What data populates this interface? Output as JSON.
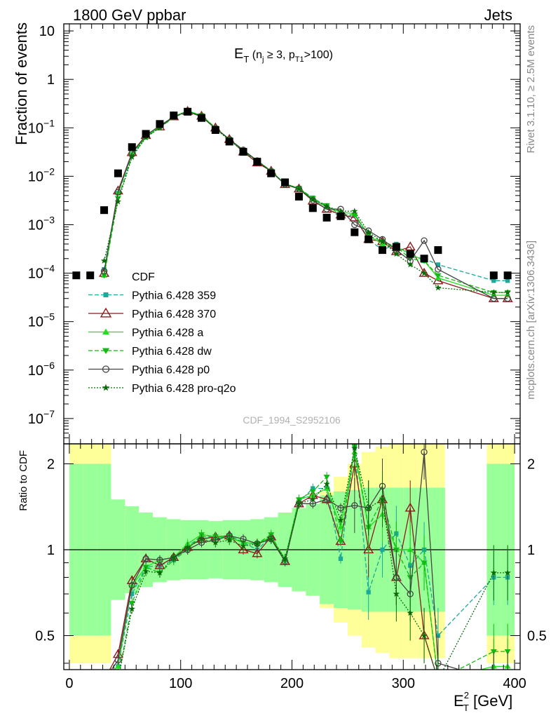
{
  "header": {
    "left": "1800 GeV ppbar",
    "right": "Jets"
  },
  "plot_title": {
    "main": "E",
    "sub": "T",
    "paren_open": " (n",
    "n_sub": "j",
    "middle": " ≥ 3, p",
    "p_sub": "T1",
    "paren_close": ">100)"
  },
  "analysis_id": "CDF_1994_S2952106",
  "side_labels": {
    "rivet": "Rivet 3.1.10, ≥ 2.5M events",
    "mcplots": "mcplots.cern.ch [arXiv:1306.3436]"
  },
  "ylabel_main": "Fraction of events",
  "ylabel_ratio": "Ratio to CDF",
  "xlabel": {
    "main": "E",
    "sup": "2",
    "sub": "T",
    "unit": " [GeV]"
  },
  "main_yticks": [
    {
      "value": 1e-07,
      "base": "10",
      "exp": "−7"
    },
    {
      "value": 1e-06,
      "base": "10",
      "exp": "−6"
    },
    {
      "value": 1e-05,
      "base": "10",
      "exp": "−5"
    },
    {
      "value": 0.0001,
      "base": "10",
      "exp": "−4"
    },
    {
      "value": 0.001,
      "base": "10",
      "exp": "−3"
    },
    {
      "value": 0.01,
      "base": "10",
      "exp": "−2"
    },
    {
      "value": 0.1,
      "base": "10",
      "exp": "−1"
    },
    {
      "value": 1,
      "base": "1",
      "exp": ""
    },
    {
      "value": 10,
      "base": "10",
      "exp": ""
    }
  ],
  "ratio_yticks": [
    {
      "value": 0.5,
      "label": "0.5"
    },
    {
      "value": 1,
      "label": "1"
    },
    {
      "value": 2,
      "label": "2"
    }
  ],
  "xticks": [
    {
      "value": 0,
      "label": "0"
    },
    {
      "value": 100,
      "label": "100"
    },
    {
      "value": 200,
      "label": "200"
    },
    {
      "value": 300,
      "label": "300"
    },
    {
      "value": 400,
      "label": "400"
    }
  ],
  "chart_data": {
    "type": "line",
    "xlim": [
      -5,
      405
    ],
    "main_ylim": [
      3e-08,
      14
    ],
    "main_yscale": "log",
    "ratio_ylim": [
      0.38,
      2.35
    ],
    "ratio_yscale": "log",
    "legend_position": "lower-left",
    "data": {
      "name": "CDF",
      "color": "#000000",
      "x": [
        6.25,
        18.75,
        31.25,
        43.75,
        56.25,
        68.75,
        81.25,
        93.75,
        106.25,
        118.75,
        131.25,
        143.75,
        156.25,
        168.75,
        181.25,
        193.75,
        206.25,
        218.75,
        231.25,
        243.75,
        256.25,
        268.75,
        281.25,
        293.75,
        306.25,
        318.75,
        331.25,
        381.25,
        393.75
      ],
      "y": [
        9e-05,
        9e-05,
        0.002,
        0.0115,
        0.04,
        0.075,
        0.12,
        0.18,
        0.215,
        0.16,
        0.09,
        0.052,
        0.032,
        0.02,
        0.0115,
        0.0075,
        0.0038,
        0.0022,
        0.0014,
        0.0015,
        0.0007,
        0.0005,
        0.0003,
        0.00035,
        0.00025,
        0.0002,
        0.0003,
        9e-05,
        9e-05
      ],
      "band_inner": [
        2.0,
        2.0,
        2.0,
        1.5,
        1.42,
        1.35,
        1.3,
        1.28,
        1.27,
        1.27,
        1.26,
        1.27,
        1.27,
        1.28,
        1.3,
        1.35,
        1.4,
        1.45,
        1.55,
        1.6,
        1.62,
        1.65,
        1.65,
        1.65,
        1.65,
        1.65,
        1.65,
        2.0,
        2.0
      ],
      "band_outer": [
        2.5,
        2.5,
        2.5,
        1.45,
        1.35,
        1.28,
        1.25,
        1.22,
        1.21,
        1.21,
        1.2,
        1.2,
        1.21,
        1.22,
        1.25,
        1.3,
        1.38,
        1.45,
        1.6,
        1.8,
        2.0,
        2.2,
        2.3,
        2.4,
        2.4,
        2.4,
        2.4,
        2.5,
        2.5
      ]
    },
    "series": [
      {
        "name": "Pythia 6.428 359",
        "color": "#1aa99a",
        "style": "dashed",
        "marker": "square",
        "x": [
          31.25,
          43.75,
          56.25,
          68.75,
          81.25,
          93.75,
          106.25,
          118.75,
          131.25,
          143.75,
          156.25,
          168.75,
          181.25,
          193.75,
          206.25,
          218.75,
          231.25,
          243.75,
          256.25,
          268.75,
          281.25,
          293.75,
          306.25,
          318.75,
          331.25,
          381.25,
          393.75
        ],
        "y": [
          0.00012,
          0.0045,
          0.028,
          0.065,
          0.105,
          0.165,
          0.222,
          0.178,
          0.1,
          0.058,
          0.034,
          0.02,
          0.0128,
          0.0069,
          0.0056,
          0.0036,
          0.0023,
          0.0014,
          0.0016,
          0.0005,
          0.0003,
          0.0004,
          0.00022,
          0.0002,
          0.00015,
          7e-05,
          7e-05
        ],
        "ratio": [
          0.06,
          0.39,
          0.7,
          0.87,
          0.88,
          0.92,
          1.03,
          1.11,
          1.11,
          1.12,
          1.06,
          1.0,
          1.11,
          0.92,
          1.47,
          1.64,
          1.64,
          0.93,
          2.29,
          0.71,
          1.0,
          1.14,
          0.88,
          1.0,
          0.5,
          0.8,
          0.8
        ]
      },
      {
        "name": "Pythia 6.428 370",
        "color": "#8b1a1a",
        "style": "solid",
        "marker": "triangle-open",
        "x": [
          31.25,
          43.75,
          56.25,
          68.75,
          81.25,
          93.75,
          106.25,
          118.75,
          131.25,
          143.75,
          156.25,
          168.75,
          181.25,
          193.75,
          206.25,
          218.75,
          231.25,
          243.75,
          256.25,
          268.75,
          281.25,
          293.75,
          306.25,
          318.75,
          331.25,
          381.25,
          393.75
        ],
        "y": [
          0.0001,
          0.005,
          0.031,
          0.07,
          0.105,
          0.17,
          0.22,
          0.175,
          0.1,
          0.058,
          0.032,
          0.019,
          0.0128,
          0.0068,
          0.0055,
          0.0031,
          0.0021,
          0.0016,
          0.0014,
          0.0005,
          0.00045,
          0.00028,
          0.00035,
          0.0001,
          7e-05,
          3e-05,
          3e-05
        ],
        "ratio": [
          0.05,
          0.43,
          0.78,
          0.93,
          0.88,
          0.94,
          1.02,
          1.09,
          1.11,
          1.12,
          1.0,
          0.97,
          1.11,
          0.91,
          1.45,
          1.55,
          1.5,
          1.07,
          2.0,
          1.0,
          1.5,
          0.8,
          1.4,
          0.5,
          0.23,
          0.33,
          0.33
        ]
      },
      {
        "name": "Pythia 6.428 a",
        "color": "#22dd22",
        "style": "solid",
        "marker": "triangle-filled",
        "x": [
          31.25,
          43.75,
          56.25,
          68.75,
          81.25,
          93.75,
          106.25,
          118.75,
          131.25,
          143.75,
          156.25,
          168.75,
          181.25,
          193.75,
          206.25,
          218.75,
          231.25,
          243.75,
          256.25,
          268.75,
          281.25,
          293.75,
          306.25,
          318.75,
          331.25,
          381.25,
          393.75
        ],
        "y": [
          9e-05,
          0.0045,
          0.03,
          0.065,
          0.11,
          0.17,
          0.225,
          0.18,
          0.1,
          0.057,
          0.034,
          0.021,
          0.0128,
          0.007,
          0.0057,
          0.0034,
          0.0023,
          0.0018,
          0.0017,
          0.0006,
          0.0004,
          0.00035,
          0.00025,
          0.00018,
          8e-05,
          3.5e-05,
          3.5e-05
        ],
        "ratio": [
          0.045,
          0.39,
          0.75,
          0.87,
          0.92,
          0.94,
          1.05,
          1.13,
          1.11,
          1.1,
          1.06,
          1.05,
          1.11,
          0.93,
          1.5,
          1.55,
          1.64,
          1.2,
          2.2,
          1.2,
          1.33,
          1.0,
          1.0,
          0.9,
          0.27,
          0.39,
          0.39
        ]
      },
      {
        "name": "Pythia 6.428 dw",
        "color": "#11bb11",
        "style": "dashed",
        "marker": "triangle-down",
        "x": [
          31.25,
          43.75,
          56.25,
          68.75,
          81.25,
          93.75,
          106.25,
          118.75,
          131.25,
          143.75,
          156.25,
          168.75,
          181.25,
          193.75,
          206.25,
          218.75,
          231.25,
          243.75,
          256.25,
          268.75,
          281.25,
          293.75,
          306.25,
          318.75,
          331.25,
          381.25,
          393.75
        ],
        "y": [
          9e-05,
          0.0035,
          0.026,
          0.065,
          0.1,
          0.165,
          0.215,
          0.18,
          0.1,
          0.058,
          0.034,
          0.021,
          0.013,
          0.0068,
          0.0057,
          0.0035,
          0.0025,
          0.0016,
          0.0016,
          0.0006,
          0.00045,
          0.00035,
          0.0002,
          0.00018,
          9e-05,
          4e-05,
          4e-05
        ],
        "ratio": [
          0.045,
          0.3,
          0.65,
          0.87,
          0.83,
          0.92,
          1.0,
          1.13,
          1.11,
          1.12,
          1.06,
          1.05,
          1.13,
          0.91,
          1.5,
          1.6,
          1.8,
          1.07,
          2.3,
          1.2,
          1.5,
          1.0,
          0.8,
          0.9,
          0.3,
          0.44,
          0.44
        ]
      },
      {
        "name": "Pythia 6.428 p0",
        "color": "#444444",
        "style": "solid",
        "marker": "circle-open",
        "x": [
          31.25,
          43.75,
          56.25,
          68.75,
          81.25,
          93.75,
          106.25,
          118.75,
          131.25,
          143.75,
          156.25,
          168.75,
          181.25,
          193.75,
          206.25,
          218.75,
          231.25,
          243.75,
          256.25,
          268.75,
          281.25,
          293.75,
          306.25,
          318.75,
          331.25,
          381.25,
          393.75
        ],
        "y": [
          0.00011,
          0.0047,
          0.03,
          0.07,
          0.11,
          0.17,
          0.215,
          0.17,
          0.097,
          0.058,
          0.035,
          0.021,
          0.0125,
          0.0068,
          0.0055,
          0.0032,
          0.0021,
          0.0021,
          0.001,
          0.00075,
          0.0005,
          0.0003,
          0.00018,
          0.00047,
          0.00012,
          3e-05,
          3e-05
        ],
        "ratio": [
          0.055,
          0.41,
          0.75,
          0.93,
          0.92,
          0.94,
          1.0,
          1.06,
          1.08,
          1.12,
          1.09,
          1.05,
          1.09,
          0.91,
          1.45,
          1.45,
          1.5,
          1.4,
          1.43,
          1.4,
          1.67,
          0.8,
          0.7,
          2.2,
          0.4,
          0.33,
          0.33
        ]
      },
      {
        "name": "Pythia 6.428 pro-q2o",
        "color": "#0a6b0a",
        "style": "dotted",
        "marker": "star",
        "x": [
          31.25,
          43.75,
          56.25,
          68.75,
          81.25,
          93.75,
          106.25,
          118.75,
          131.25,
          143.75,
          156.25,
          168.75,
          181.25,
          193.75,
          206.25,
          218.75,
          231.25,
          243.75,
          256.25,
          268.75,
          281.25,
          293.75,
          306.25,
          318.75,
          331.25,
          381.25,
          393.75
        ],
        "y": [
          0.00018,
          0.003,
          0.025,
          0.063,
          0.1,
          0.17,
          0.22,
          0.175,
          0.095,
          0.056,
          0.033,
          0.021,
          0.0125,
          0.007,
          0.0055,
          0.0033,
          0.0024,
          0.0019,
          0.0019,
          0.0007,
          0.00045,
          0.00025,
          0.00015,
          0.0001,
          5e-05,
          4e-05,
          4e-05
        ],
        "ratio": [
          0.09,
          0.26,
          0.62,
          0.84,
          0.83,
          0.94,
          1.02,
          1.09,
          1.06,
          1.08,
          1.03,
          1.05,
          1.09,
          0.93,
          1.45,
          1.5,
          1.7,
          1.27,
          2.27,
          1.4,
          1.5,
          0.7,
          0.6,
          0.5,
          0.17,
          0.83,
          0.83
        ]
      }
    ]
  }
}
